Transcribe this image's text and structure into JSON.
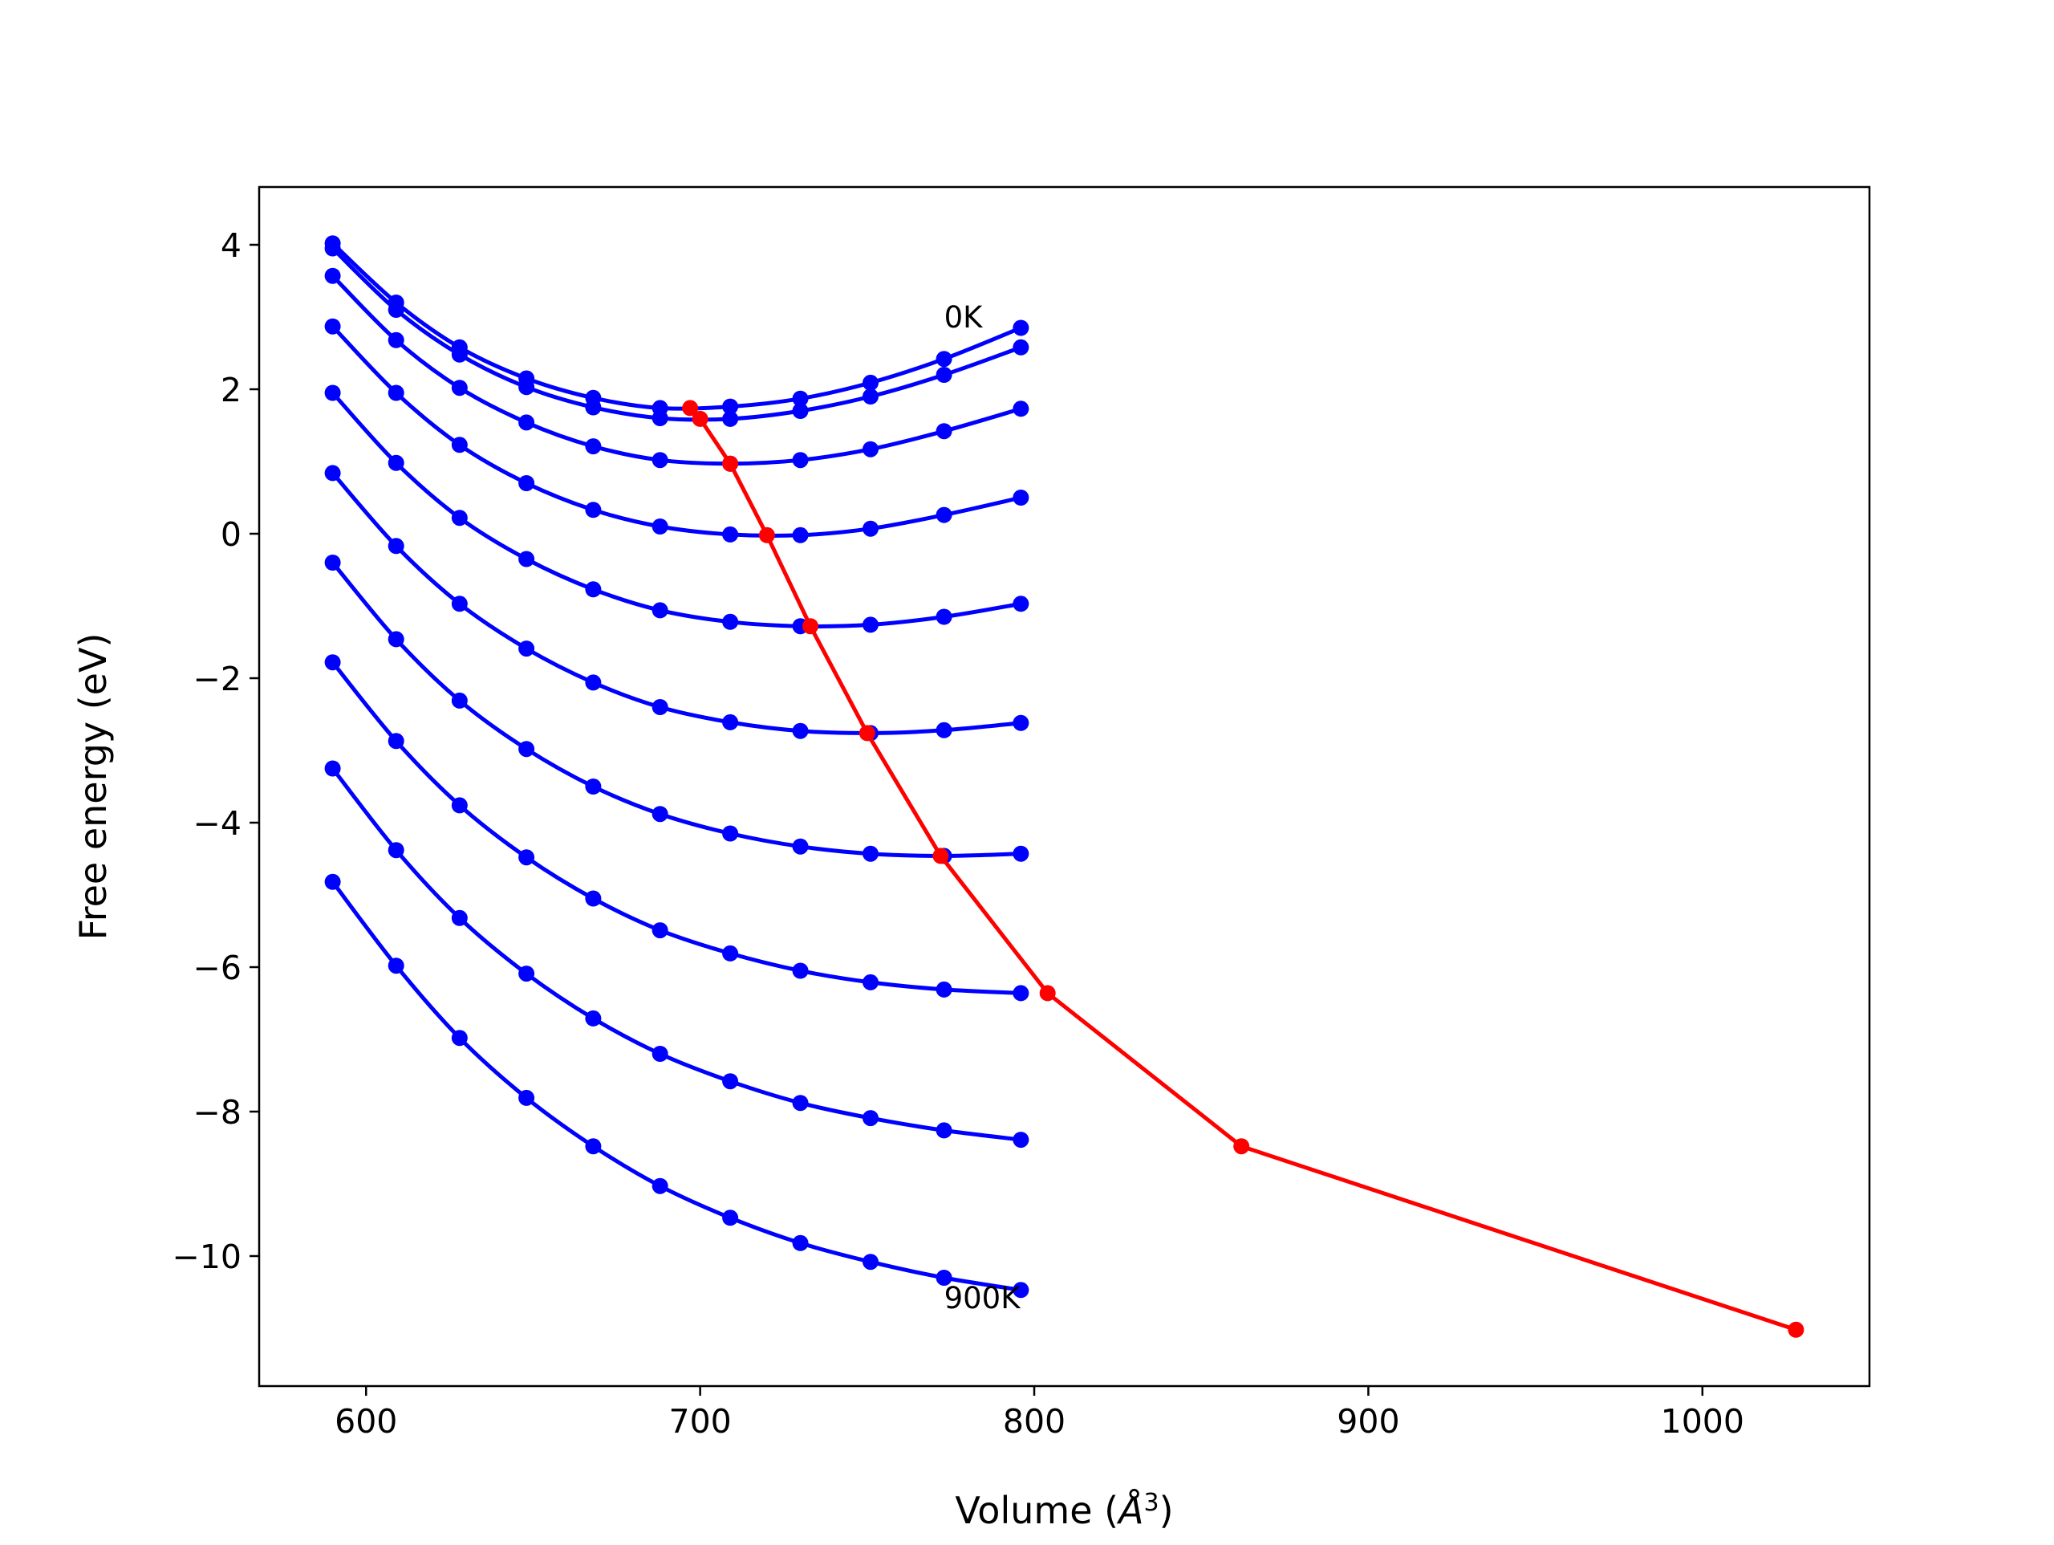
{
  "chart_data": {
    "type": "line",
    "title": "",
    "xlabel_prefix": "Volume (",
    "xlabel_unit": "Å",
    "xlabel_sup": "3",
    "xlabel_suffix": ")",
    "ylabel": "Free energy (eV)",
    "xlim": [
      568,
      1050
    ],
    "ylim": [
      -11.8,
      4.8
    ],
    "xticks": [
      600,
      700,
      800,
      900,
      1000
    ],
    "yticks": [
      4,
      2,
      0,
      -2,
      -4,
      -6,
      -8,
      -10
    ],
    "xtick_labels": [
      "600",
      "700",
      "800",
      "900",
      "1000"
    ],
    "ytick_labels": [
      "4",
      "2",
      "0",
      "−2",
      "−4",
      "−6",
      "−8",
      "−10"
    ],
    "grid": false,
    "x": [
      590,
      609,
      628,
      648,
      668,
      688,
      709,
      730,
      751,
      773,
      796
    ],
    "series_color": "#0000ff",
    "series": [
      {
        "values": [
          4.02,
          3.2,
          2.58,
          2.15,
          1.88,
          1.74,
          1.76,
          1.87,
          2.09,
          2.42,
          2.85
        ]
      },
      {
        "values": [
          3.95,
          3.1,
          2.48,
          2.03,
          1.75,
          1.6,
          1.59,
          1.7,
          1.9,
          2.2,
          2.58
        ]
      },
      {
        "values": [
          3.57,
          2.68,
          2.02,
          1.54,
          1.21,
          1.02,
          0.97,
          1.02,
          1.17,
          1.42,
          1.73
        ]
      },
      {
        "values": [
          2.87,
          1.95,
          1.23,
          0.7,
          0.33,
          0.1,
          -0.01,
          -0.02,
          0.07,
          0.26,
          0.5
        ]
      },
      {
        "values": [
          1.95,
          0.98,
          0.22,
          -0.35,
          -0.77,
          -1.06,
          -1.22,
          -1.28,
          -1.26,
          -1.15,
          -0.97
        ]
      },
      {
        "values": [
          0.84,
          -0.17,
          -0.97,
          -1.59,
          -2.06,
          -2.4,
          -2.61,
          -2.73,
          -2.76,
          -2.72,
          -2.62
        ]
      },
      {
        "values": [
          -0.4,
          -1.46,
          -2.31,
          -2.98,
          -3.5,
          -3.88,
          -4.15,
          -4.33,
          -4.43,
          -4.46,
          -4.43
        ]
      },
      {
        "values": [
          -1.78,
          -2.87,
          -3.76,
          -4.48,
          -5.05,
          -5.49,
          -5.81,
          -6.05,
          -6.21,
          -6.31,
          -6.36
        ]
      },
      {
        "values": [
          -3.25,
          -4.38,
          -5.32,
          -6.09,
          -6.71,
          -7.2,
          -7.58,
          -7.88,
          -8.09,
          -8.26,
          -8.39
        ]
      },
      {
        "values": [
          -4.82,
          -5.98,
          -6.98,
          -7.81,
          -8.48,
          -9.03,
          -9.47,
          -9.82,
          -10.08,
          -10.3,
          -10.47
        ]
      }
    ],
    "minima_color": "#ff0000",
    "minima": {
      "x": [
        697,
        700,
        709,
        720,
        733,
        750,
        772,
        804,
        862,
        1028
      ],
      "values": [
        1.74,
        1.59,
        0.97,
        -0.02,
        -1.28,
        -2.76,
        -4.46,
        -6.36,
        -8.48,
        -11.02
      ]
    },
    "annotations": [
      {
        "text": "0K",
        "x": 773,
        "y": 3.0
      },
      {
        "text": "900K",
        "x": 773,
        "y": -10.58
      }
    ]
  }
}
